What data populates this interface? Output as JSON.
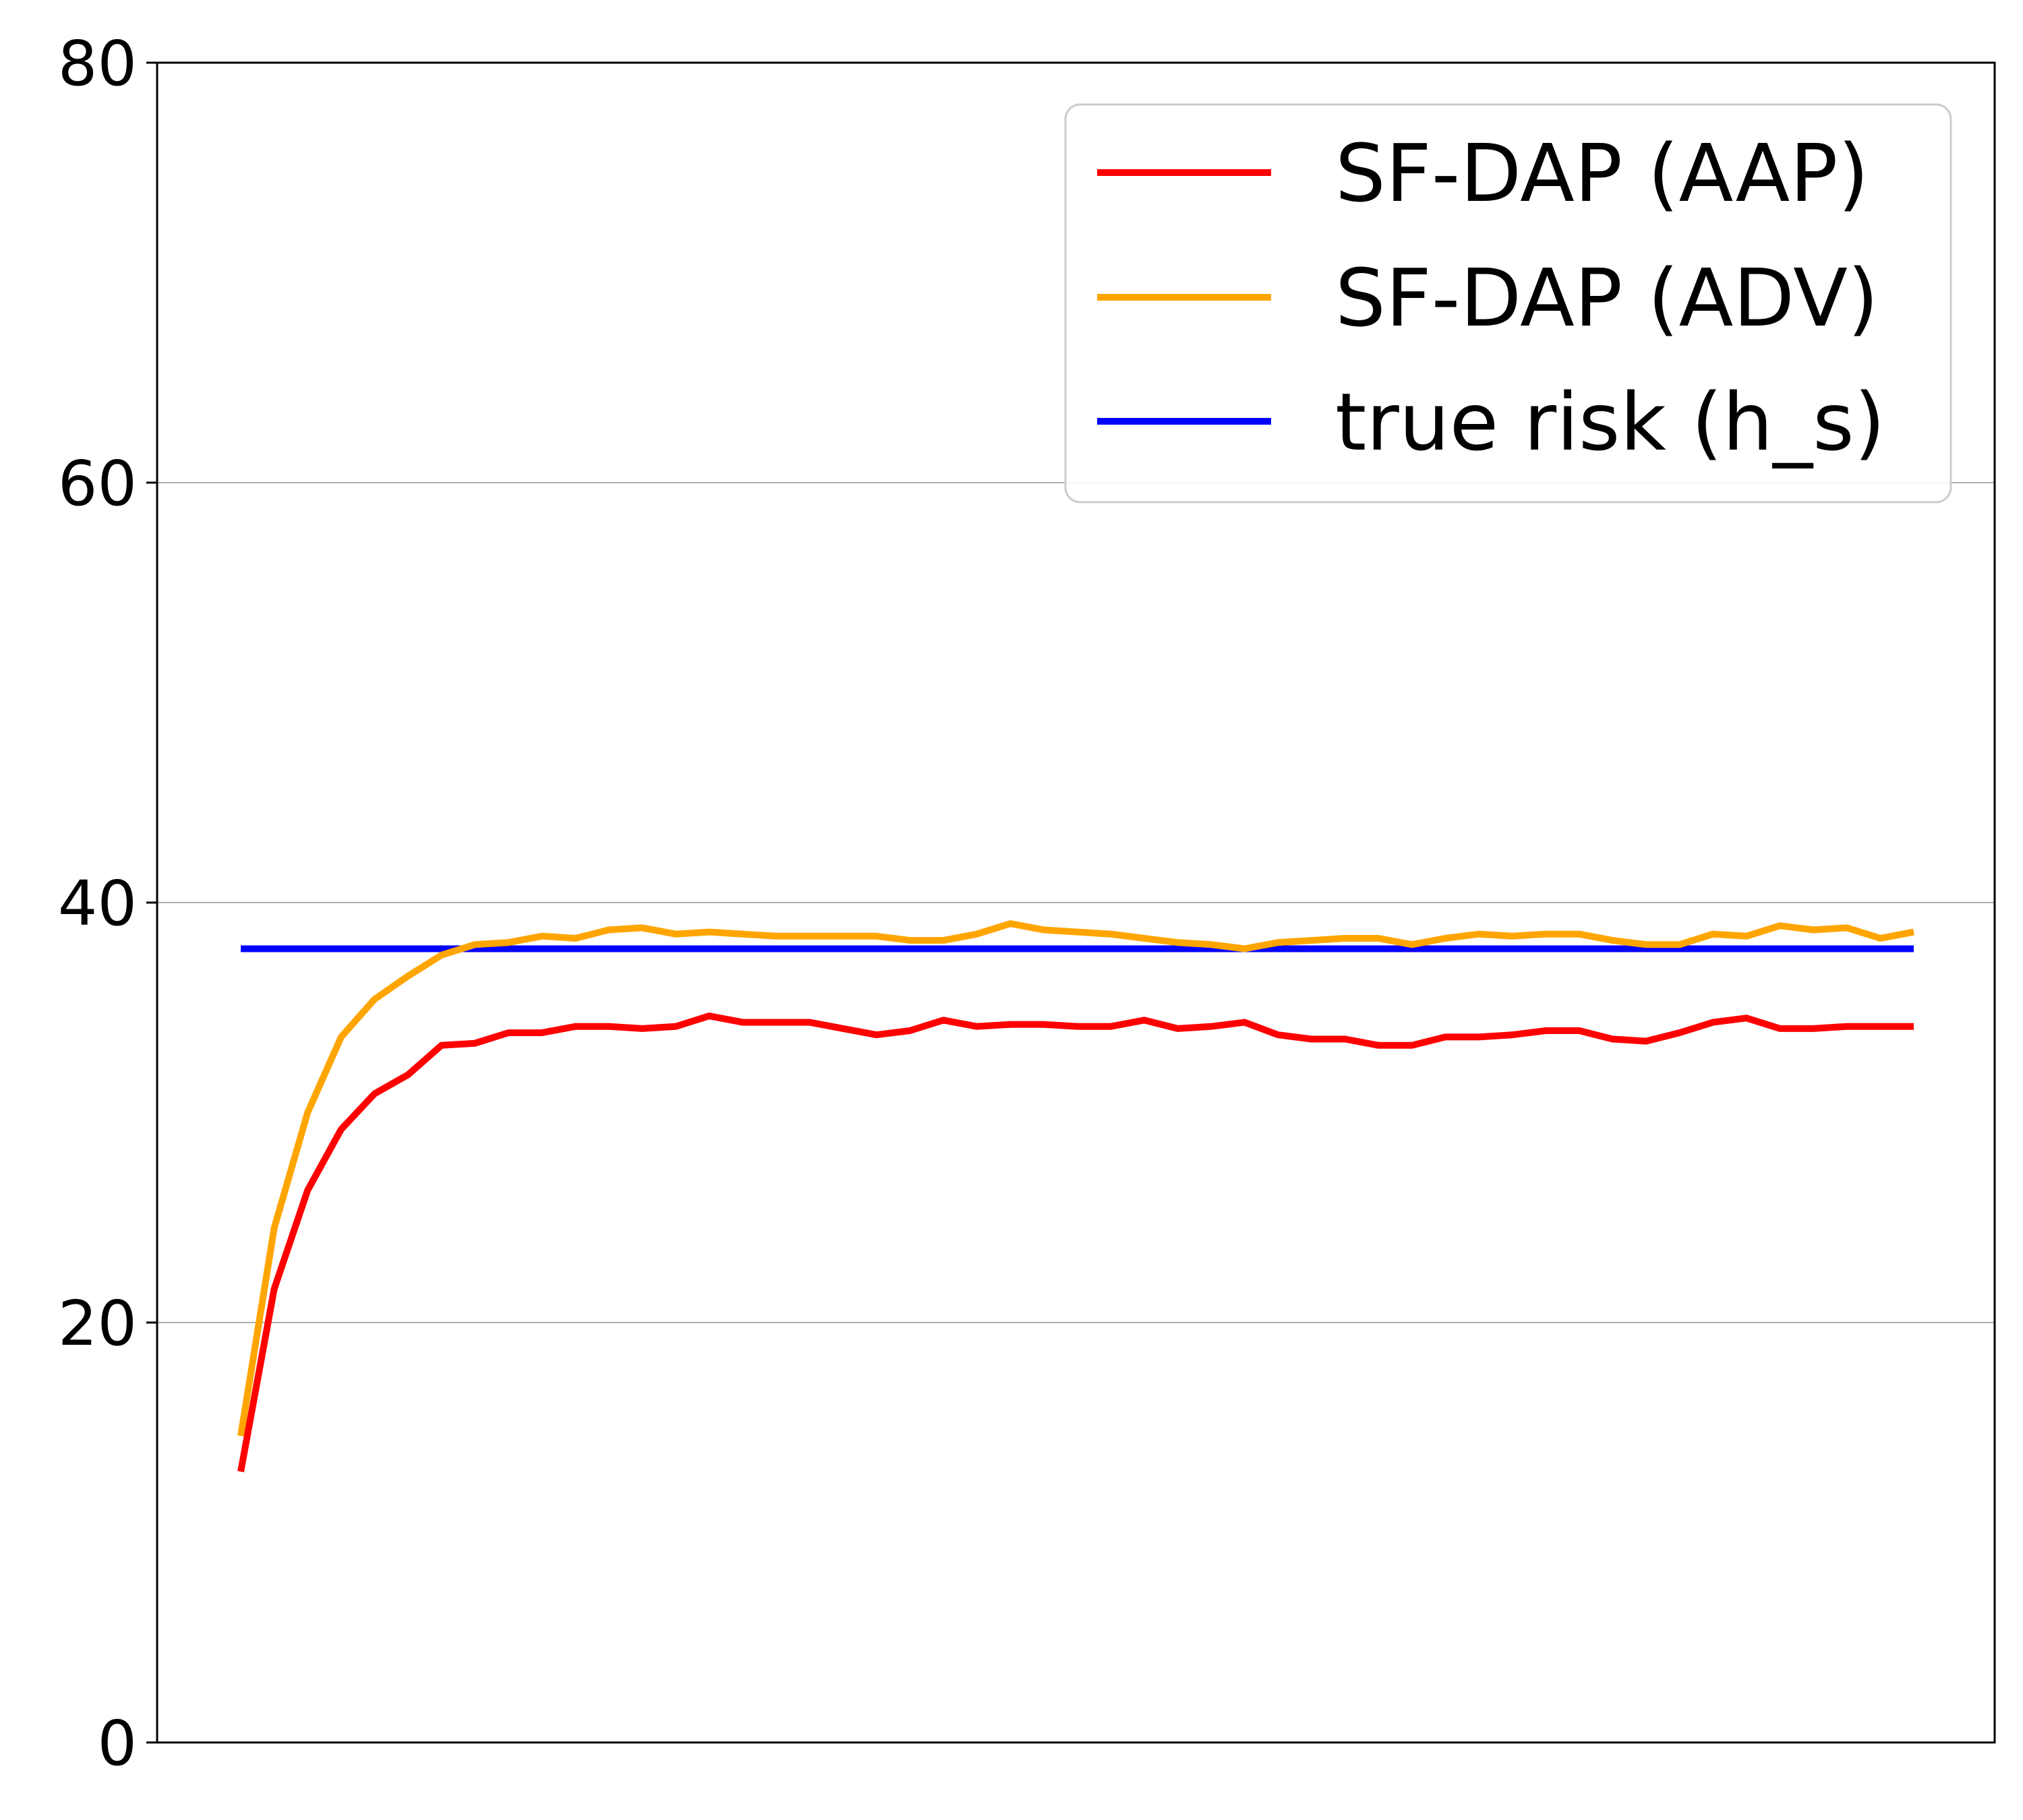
{
  "chart_data": {
    "type": "line",
    "title": "",
    "xlabel": "",
    "ylabel": "",
    "ylim": [
      0,
      80
    ],
    "yticks": [
      0,
      20,
      40,
      60,
      80
    ],
    "ytick_labels": [
      "0",
      "20",
      "40",
      "60",
      "80"
    ],
    "grid": "horizontal",
    "legend_position": "top-right",
    "x": [
      1,
      2,
      3,
      4,
      5,
      6,
      7,
      8,
      9,
      10,
      11,
      12,
      13,
      14,
      15,
      16,
      17,
      18,
      19,
      20,
      21,
      22,
      23,
      24,
      25,
      26,
      27,
      28,
      29,
      30,
      31,
      32,
      33,
      34,
      35,
      36,
      37,
      38,
      39,
      40,
      41,
      42,
      43,
      44,
      45,
      46,
      47,
      48,
      49,
      50,
      51
    ],
    "series": [
      {
        "name": "SF-DAP (AAP)",
        "color": "#ff0000",
        "values": [
          12.9,
          21.6,
          26.3,
          29.2,
          30.9,
          31.8,
          33.2,
          33.3,
          33.8,
          33.8,
          34.1,
          34.1,
          34.0,
          34.1,
          34.6,
          34.3,
          34.3,
          34.3,
          34.0,
          33.7,
          33.9,
          34.4,
          34.1,
          34.2,
          34.2,
          34.1,
          34.1,
          34.4,
          34.0,
          34.1,
          34.3,
          33.7,
          33.5,
          33.5,
          33.2,
          33.2,
          33.6,
          33.6,
          33.7,
          33.9,
          33.9,
          33.5,
          33.4,
          33.8,
          34.3,
          34.5,
          34.0,
          34.0,
          34.1,
          34.1,
          34.1
        ]
      },
      {
        "name": "SF-DAP (ADV)",
        "color": "#ffa500",
        "values": [
          14.6,
          24.5,
          30.0,
          33.6,
          35.4,
          36.5,
          37.5,
          38.0,
          38.1,
          38.4,
          38.3,
          38.7,
          38.8,
          38.5,
          38.6,
          38.5,
          38.4,
          38.4,
          38.4,
          38.4,
          38.2,
          38.2,
          38.5,
          39.0,
          38.7,
          38.6,
          38.5,
          38.3,
          38.1,
          38.0,
          37.8,
          38.1,
          38.2,
          38.3,
          38.3,
          38.0,
          38.3,
          38.5,
          38.4,
          38.5,
          38.5,
          38.2,
          38.0,
          38.0,
          38.5,
          38.4,
          38.9,
          38.7,
          38.8,
          38.3,
          38.6
        ]
      },
      {
        "name": "true risk (h_s)",
        "color": "#0000ff",
        "values": [
          37.8,
          37.8,
          37.8,
          37.8,
          37.8,
          37.8,
          37.8,
          37.8,
          37.8,
          37.8,
          37.8,
          37.8,
          37.8,
          37.8,
          37.8,
          37.8,
          37.8,
          37.8,
          37.8,
          37.8,
          37.8,
          37.8,
          37.8,
          37.8,
          37.8,
          37.8,
          37.8,
          37.8,
          37.8,
          37.8,
          37.8,
          37.8,
          37.8,
          37.8,
          37.8,
          37.8,
          37.8,
          37.8,
          37.8,
          37.8,
          37.8,
          37.8,
          37.8,
          37.8,
          37.8,
          37.8,
          37.8,
          37.8,
          37.8,
          37.8,
          37.8
        ]
      }
    ]
  }
}
